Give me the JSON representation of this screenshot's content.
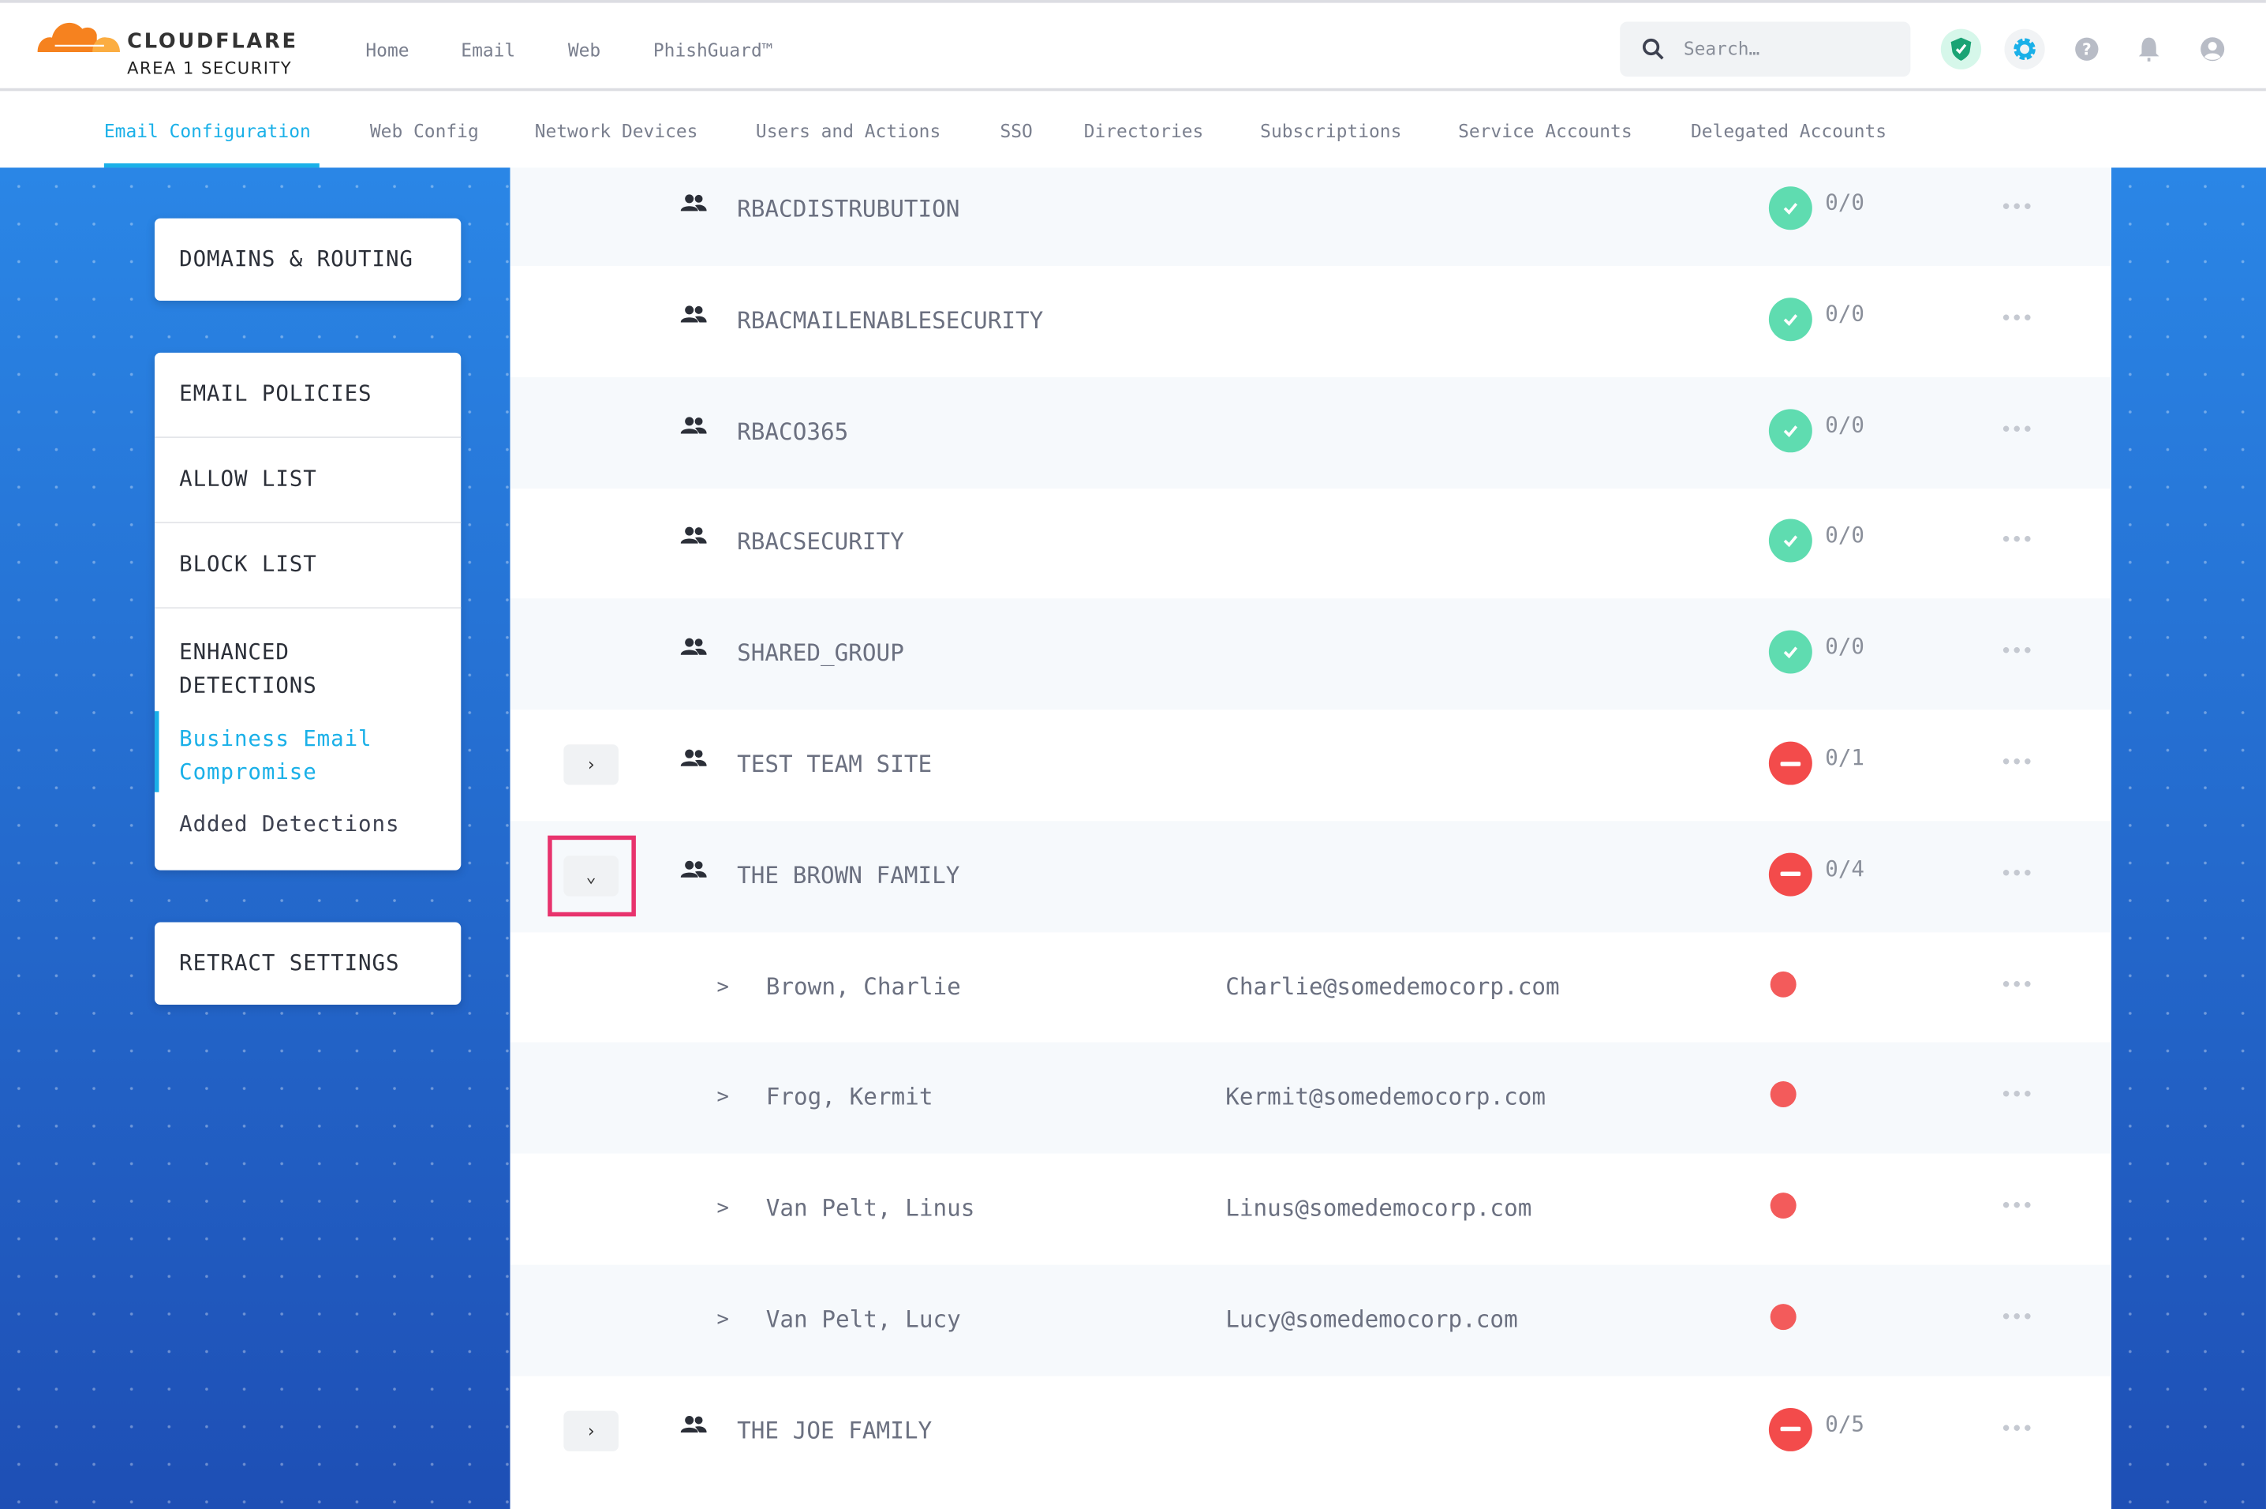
{
  "brand": {
    "name": "CLOUDFLARE",
    "sub": "AREA 1 SECURITY"
  },
  "topnav": [
    "Home",
    "Email",
    "Web",
    "PhishGuard™"
  ],
  "search": {
    "placeholder": "Search…"
  },
  "header_icons": [
    "shield-check-icon",
    "gear-icon",
    "help-icon",
    "bell-icon",
    "user-icon"
  ],
  "tabs": [
    {
      "label": "Email Configuration",
      "active": true
    },
    {
      "label": "Web Config"
    },
    {
      "label": "Network Devices"
    },
    {
      "label": "Users and Actions"
    },
    {
      "label": "SSO"
    },
    {
      "label": "Directories"
    },
    {
      "label": "Subscriptions"
    },
    {
      "label": "Service Accounts"
    },
    {
      "label": "Delegated Accounts"
    }
  ],
  "sidebar": {
    "domains": "DOMAINS & ROUTING",
    "email_policies": "EMAIL POLICIES",
    "allow_list": "ALLOW LIST",
    "block_list": "BLOCK LIST",
    "enhanced_1": "ENHANCED",
    "enhanced_2": "DETECTIONS",
    "bec_1": "Business Email",
    "bec_2": "Compromise",
    "added": "Added Detections",
    "retract": "RETRACT SETTINGS"
  },
  "colors": {
    "accent": "#1ab0e8",
    "ok": "#5fdcb0",
    "error": "#f34b4b",
    "highlight": "#e8336d"
  },
  "rows": [
    {
      "type": "group",
      "name": "RBACDISTRUBUTION",
      "status": "ok",
      "count": "0/0"
    },
    {
      "type": "group",
      "name": "RBACMAILENABLESECURITY",
      "status": "ok",
      "count": "0/0"
    },
    {
      "type": "group",
      "name": "RBACO365",
      "status": "ok",
      "count": "0/0"
    },
    {
      "type": "group",
      "name": "RBACSECURITY",
      "status": "ok",
      "count": "0/0"
    },
    {
      "type": "group",
      "name": "SHARED_GROUP",
      "status": "ok",
      "count": "0/0"
    },
    {
      "type": "group",
      "name": "TEST TEAM SITE",
      "status": "error",
      "count": "0/1",
      "expander": "›"
    },
    {
      "type": "group",
      "name": "THE BROWN FAMILY",
      "status": "error",
      "count": "0/4",
      "expander": "⌄",
      "expanded": true
    },
    {
      "type": "member",
      "arrow": ">",
      "name": "Brown, Charlie",
      "email": "Charlie@somedemocorp.com"
    },
    {
      "type": "member",
      "arrow": ">",
      "name": "Frog, Kermit",
      "email": "Kermit@somedemocorp.com"
    },
    {
      "type": "member",
      "arrow": ">",
      "name": "Van Pelt, Linus",
      "email": "Linus@somedemocorp.com"
    },
    {
      "type": "member",
      "arrow": ">",
      "name": "Van Pelt, Lucy",
      "email": "Lucy@somedemocorp.com"
    },
    {
      "type": "group",
      "name": "THE JOE FAMILY",
      "status": "error",
      "count": "0/5",
      "expander": "›"
    }
  ],
  "more_label": "•••"
}
